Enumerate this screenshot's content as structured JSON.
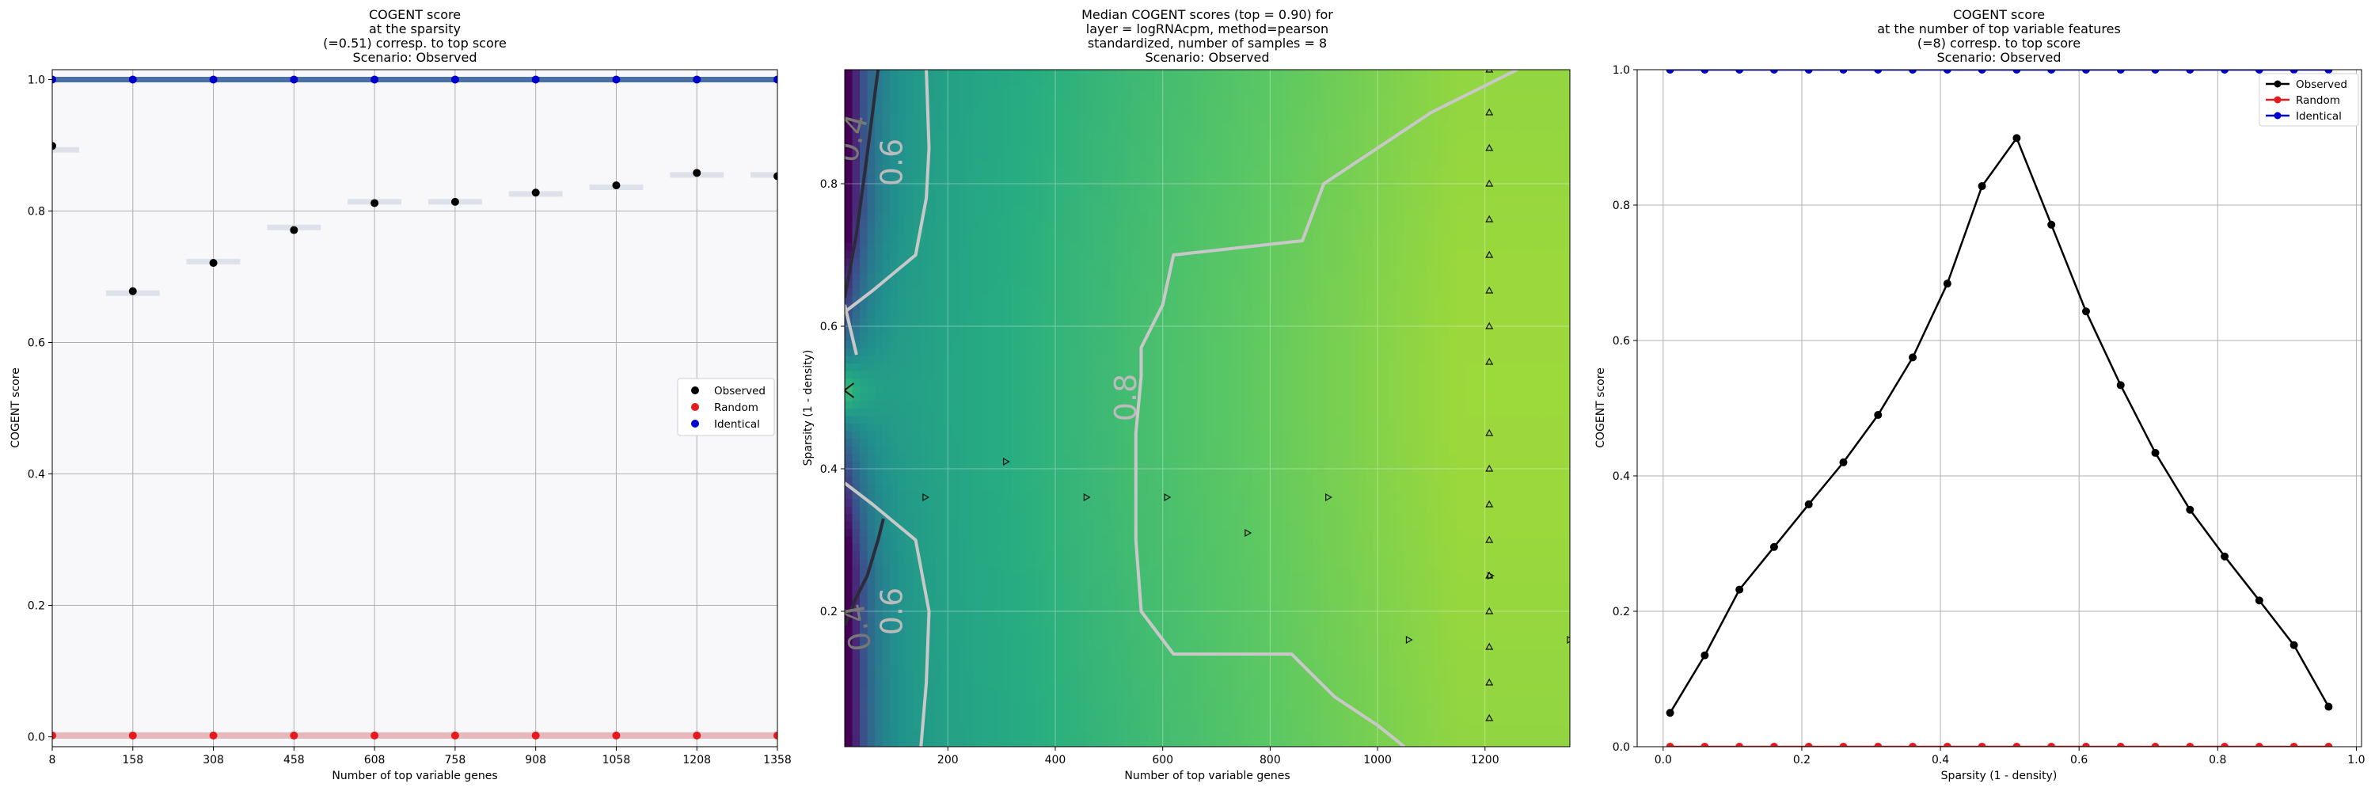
{
  "chart_data": [
    {
      "type": "scatter",
      "title": [
        "COGENT score",
        "at the sparsity",
        "(=0.51) corresp. to top score",
        "Scenario: Observed"
      ],
      "xlabel": "Number of top variable genes",
      "ylabel": "COGENT score",
      "xlim": [
        8,
        1358
      ],
      "ylim": [
        -0.015,
        1.015
      ],
      "xticks": [
        8,
        158,
        308,
        458,
        608,
        758,
        908,
        1058,
        1208,
        1358
      ],
      "yticks": [
        0.0,
        0.2,
        0.4,
        0.6,
        0.8,
        1.0
      ],
      "grid": true,
      "legend_position": "center-right",
      "series": [
        {
          "name": "Observed",
          "color": "#000000",
          "points": [
            [
              8,
              0.899
            ],
            [
              158,
              0.678
            ],
            [
              308,
              0.721
            ],
            [
              458,
              0.771
            ],
            [
              608,
              0.812
            ],
            [
              758,
              0.814
            ],
            [
              908,
              0.828
            ],
            [
              1058,
              0.839
            ],
            [
              1208,
              0.858
            ],
            [
              1358,
              0.853
            ]
          ],
          "bands": [
            [
              8,
              0.893
            ],
            [
              158,
              0.675
            ],
            [
              308,
              0.723
            ],
            [
              458,
              0.775
            ],
            [
              608,
              0.814
            ],
            [
              758,
              0.814
            ],
            [
              908,
              0.826
            ],
            [
              1058,
              0.836
            ],
            [
              1208,
              0.855
            ],
            [
              1358,
              0.855
            ]
          ]
        },
        {
          "name": "Random",
          "color": "#e41a1c",
          "points": [
            [
              8,
              0.002
            ],
            [
              158,
              0.002
            ],
            [
              308,
              0.002
            ],
            [
              458,
              0.002
            ],
            [
              608,
              0.002
            ],
            [
              758,
              0.002
            ],
            [
              908,
              0.002
            ],
            [
              1058,
              0.002
            ],
            [
              1208,
              0.002
            ],
            [
              1358,
              0.002
            ]
          ]
        },
        {
          "name": "Identical",
          "color": "#0000cc",
          "points": [
            [
              8,
              1.0
            ],
            [
              158,
              1.0
            ],
            [
              308,
              1.0
            ],
            [
              458,
              1.0
            ],
            [
              608,
              1.0
            ],
            [
              758,
              1.0
            ],
            [
              908,
              1.0
            ],
            [
              1058,
              1.0
            ],
            [
              1208,
              1.0
            ],
            [
              1358,
              1.0
            ]
          ]
        }
      ]
    },
    {
      "type": "heatmap",
      "title": [
        "Median COGENT scores (top = 0.90) for",
        "layer = logRNAcpm, method=pearson",
        "standardized, number of samples = 8",
        "Scenario: Observed"
      ],
      "xlabel": "Number of top variable genes",
      "ylabel": "Sparsity (1 - density)",
      "xlim": [
        8,
        1358
      ],
      "ylim": [
        0.01,
        0.96
      ],
      "xticks": [
        200,
        400,
        600,
        800,
        1000,
        1200
      ],
      "yticks": [
        0.2,
        0.4,
        0.6,
        0.8
      ],
      "colormap": "viridis",
      "contour_levels": [
        0.4,
        0.6,
        0.8
      ],
      "contour_labels": [
        "0.4",
        "0.6",
        "0.8"
      ],
      "contours": [
        {
          "level": "0.4",
          "path": [
            [
              8,
              0.64
            ],
            [
              30,
              0.73
            ],
            [
              48,
              0.83
            ],
            [
              70,
              0.96
            ]
          ]
        },
        {
          "level": "0.4",
          "path": [
            [
              8,
              0.18
            ],
            [
              30,
              0.22
            ],
            [
              50,
              0.25
            ],
            [
              70,
              0.3
            ],
            [
              80,
              0.33
            ]
          ]
        },
        {
          "level": "0.6",
          "path": [
            [
              8,
              0.62
            ],
            [
              60,
              0.65
            ],
            [
              140,
              0.7
            ],
            [
              160,
              0.78
            ],
            [
              165,
              0.85
            ],
            [
              160,
              0.96
            ]
          ]
        },
        {
          "level": "0.6",
          "path": [
            [
              8,
              0.38
            ],
            [
              60,
              0.35
            ],
            [
              140,
              0.3
            ],
            [
              165,
              0.2
            ],
            [
              160,
              0.1
            ],
            [
              150,
              0.01
            ]
          ]
        },
        {
          "level": "0.8",
          "path": [
            [
              1260,
              0.96
            ],
            [
              1100,
              0.9
            ],
            [
              1000,
              0.85
            ],
            [
              900,
              0.8
            ],
            [
              860,
              0.72
            ],
            [
              620,
              0.7
            ],
            [
              600,
              0.63
            ],
            [
              560,
              0.57
            ],
            [
              560,
              0.53
            ],
            [
              550,
              0.45
            ],
            [
              550,
              0.3
            ],
            [
              560,
              0.2
            ],
            [
              620,
              0.14
            ],
            [
              840,
              0.14
            ],
            [
              920,
              0.08
            ],
            [
              1000,
              0.04
            ],
            [
              1050,
              0.01
            ]
          ]
        },
        {
          "level": "0.8",
          "path": [
            [
              30,
              0.56
            ],
            [
              8,
              0.63
            ]
          ]
        }
      ],
      "markers": [
        {
          "x": 1208,
          "y": 0.05,
          "kind": "triangle-up"
        },
        {
          "x": 1208,
          "y": 0.1,
          "kind": "triangle-up"
        },
        {
          "x": 1208,
          "y": 0.15,
          "kind": "triangle-up"
        },
        {
          "x": 1208,
          "y": 0.2,
          "kind": "triangle-up"
        },
        {
          "x": 1208,
          "y": 0.25,
          "kind": "triangle-up"
        },
        {
          "x": 1208,
          "y": 0.3,
          "kind": "triangle-up"
        },
        {
          "x": 1208,
          "y": 0.35,
          "kind": "triangle-up"
        },
        {
          "x": 1208,
          "y": 0.4,
          "kind": "triangle-up"
        },
        {
          "x": 1208,
          "y": 0.45,
          "kind": "triangle-up"
        },
        {
          "x": 1208,
          "y": 0.55,
          "kind": "triangle-up"
        },
        {
          "x": 1208,
          "y": 0.6,
          "kind": "triangle-up"
        },
        {
          "x": 1208,
          "y": 0.65,
          "kind": "triangle-up"
        },
        {
          "x": 1208,
          "y": 0.7,
          "kind": "triangle-up"
        },
        {
          "x": 1208,
          "y": 0.75,
          "kind": "triangle-up"
        },
        {
          "x": 1208,
          "y": 0.8,
          "kind": "triangle-up"
        },
        {
          "x": 1208,
          "y": 0.85,
          "kind": "triangle-up"
        },
        {
          "x": 1208,
          "y": 0.9,
          "kind": "triangle-up"
        },
        {
          "x": 1208,
          "y": 0.96,
          "kind": "triangle-up"
        },
        {
          "x": 1210,
          "y": 0.25,
          "kind": "triangle-right"
        },
        {
          "x": 158,
          "y": 0.36,
          "kind": "triangle-right"
        },
        {
          "x": 308,
          "y": 0.41,
          "kind": "triangle-right"
        },
        {
          "x": 458,
          "y": 0.36,
          "kind": "triangle-right"
        },
        {
          "x": 608,
          "y": 0.36,
          "kind": "triangle-right"
        },
        {
          "x": 758,
          "y": 0.31,
          "kind": "triangle-right"
        },
        {
          "x": 908,
          "y": 0.36,
          "kind": "triangle-right"
        },
        {
          "x": 1058,
          "y": 0.16,
          "kind": "triangle-right"
        },
        {
          "x": 1358,
          "y": 0.16,
          "kind": "triangle-right"
        },
        {
          "x": 16,
          "y": 0.51,
          "kind": "triangle-left"
        }
      ]
    },
    {
      "type": "line",
      "title": [
        "COGENT score",
        "at the number of top variable features",
        "(=8) corresp. to top score",
        "Scenario: Observed"
      ],
      "xlabel": "Sparsity (1 - density)",
      "ylabel": "COGENT score",
      "xlim": [
        -0.0375,
        1.0075
      ],
      "ylim": [
        0.0,
        1.0
      ],
      "xticks": [
        0.0,
        0.2,
        0.4,
        0.6,
        0.8,
        1.0
      ],
      "yticks": [
        0.0,
        0.2,
        0.4,
        0.6,
        0.8,
        1.0
      ],
      "grid": true,
      "legend_position": "top-right",
      "x": [
        0.01,
        0.06,
        0.11,
        0.16,
        0.21,
        0.26,
        0.31,
        0.36,
        0.41,
        0.46,
        0.51,
        0.56,
        0.61,
        0.66,
        0.71,
        0.76,
        0.81,
        0.86,
        0.91,
        0.96
      ],
      "series": [
        {
          "name": "Observed",
          "color": "#000000",
          "values": [
            0.05,
            0.135,
            0.232,
            0.295,
            0.358,
            0.42,
            0.49,
            0.575,
            0.684,
            0.828,
            0.899,
            0.771,
            0.643,
            0.534,
            0.434,
            0.35,
            0.281,
            0.216,
            0.15,
            0.059
          ]
        },
        {
          "name": "Random",
          "color": "#e41a1c",
          "values": [
            0.0,
            0.0,
            0.0,
            0.0,
            0.0,
            0.0,
            0.0,
            0.0,
            0.0,
            0.0,
            0.0,
            0.0,
            0.0,
            0.0,
            0.0,
            0.0,
            0.0,
            0.0,
            0.0,
            0.0
          ]
        },
        {
          "name": "Identical",
          "color": "#0000cc",
          "values": [
            1.0,
            1.0,
            1.0,
            1.0,
            1.0,
            1.0,
            1.0,
            1.0,
            1.0,
            1.0,
            1.0,
            1.0,
            1.0,
            1.0,
            1.0,
            1.0,
            1.0,
            1.0,
            1.0,
            1.0
          ]
        }
      ]
    }
  ]
}
